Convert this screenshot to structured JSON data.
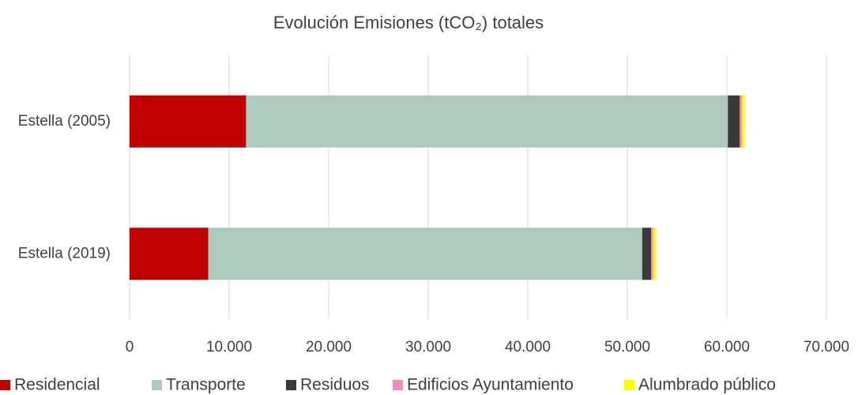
{
  "chart_data": {
    "type": "stacked-barh",
    "title": "Evolución Emisiones (tCO₂) totales",
    "categories": [
      "Estella (2005)",
      "Estella (2019)"
    ],
    "series": [
      {
        "name": "Residencial",
        "color": "#c00000",
        "values": [
          11700,
          7900
        ]
      },
      {
        "name": "Transporte",
        "color": "#aecabe",
        "values": [
          48400,
          43600
        ]
      },
      {
        "name": "Residuos",
        "color": "#3a3a3a",
        "values": [
          1200,
          900
        ]
      },
      {
        "name": "Edificios Ayuntamiento",
        "color": "#f08cbc",
        "values": [
          200,
          200
        ]
      },
      {
        "name": "Alumbrado público",
        "color": "#ffff00",
        "values": [
          300,
          300
        ]
      }
    ],
    "xlim": [
      0,
      70000
    ],
    "xticks": [
      0,
      {
        "value": 10000,
        "label": "10.000"
      },
      {
        "value": 20000,
        "label": "20.000"
      },
      {
        "value": 30000,
        "label": "30.000"
      },
      {
        "value": 40000,
        "label": "40.000"
      },
      {
        "value": 50000,
        "label": "50.000"
      },
      {
        "value": 60000,
        "label": "60.000"
      },
      {
        "value": 70000,
        "label": "70.000"
      }
    ],
    "grid": true,
    "legend": "bottom"
  }
}
